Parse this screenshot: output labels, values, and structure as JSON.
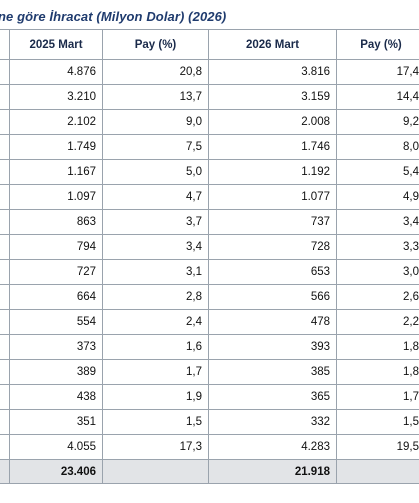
{
  "title": "ne göre İhracat (Milyon Dolar) (2026)",
  "table": {
    "headers": [
      "",
      "2025 Mart",
      "Pay  (%)",
      "2026 Mart",
      "Pay  (%)"
    ],
    "rows": [
      [
        "4.876",
        "20,8",
        "3.816",
        "17,4"
      ],
      [
        "3.210",
        "13,7",
        "3.159",
        "14,4"
      ],
      [
        "2.102",
        "9,0",
        "2.008",
        "9,2"
      ],
      [
        "1.749",
        "7,5",
        "1.746",
        "8,0"
      ],
      [
        "1.167",
        "5,0",
        "1.192",
        "5,4"
      ],
      [
        "1.097",
        "4,7",
        "1.077",
        "4,9"
      ],
      [
        "863",
        "3,7",
        "737",
        "3,4"
      ],
      [
        "794",
        "3,4",
        "728",
        "3,3"
      ],
      [
        "727",
        "3,1",
        "653",
        "3,0"
      ],
      [
        "664",
        "2,8",
        "566",
        "2,6"
      ],
      [
        "554",
        "2,4",
        "478",
        "2,2"
      ],
      [
        "373",
        "1,6",
        "393",
        "1,8"
      ],
      [
        "389",
        "1,7",
        "385",
        "1,8"
      ],
      [
        "438",
        "1,9",
        "365",
        "1,7"
      ],
      [
        "351",
        "1,5",
        "332",
        "1,5"
      ],
      [
        "4.055",
        "17,3",
        "4.283",
        "19,5"
      ]
    ],
    "total": [
      "23.406",
      "",
      "21.918",
      ""
    ]
  }
}
